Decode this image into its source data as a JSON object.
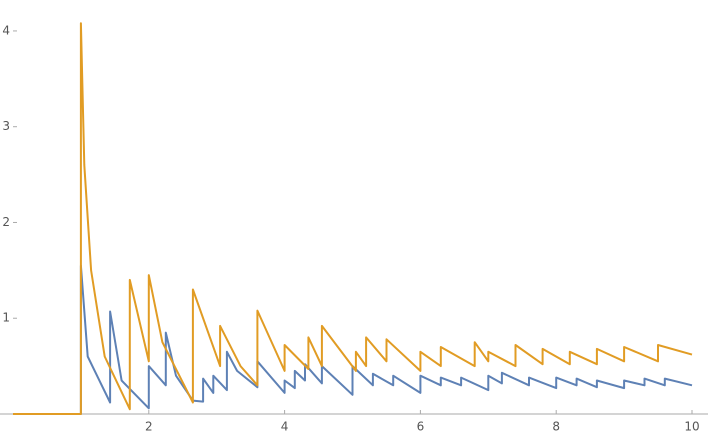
{
  "chart_data": {
    "type": "line",
    "xlim": [
      0,
      10
    ],
    "ylim": [
      0,
      4.25
    ],
    "xticks": [
      2,
      4,
      6,
      8,
      10
    ],
    "yticks": [
      1,
      2,
      3,
      4
    ],
    "series": [
      {
        "color": "#5e81b5",
        "x": [
          0,
          1,
          1,
          1.1,
          1.43,
          1.43,
          1.6,
          2.0,
          2.0,
          2.25,
          2.25,
          2.4,
          2.65,
          2.8,
          2.8,
          2.95,
          2.95,
          3.15,
          3.15,
          3.3,
          3.6,
          3.6,
          4.0,
          4.0,
          4.15,
          4.15,
          4.3,
          4.3,
          4.55,
          4.55,
          5.0,
          5.0,
          5.3,
          5.3,
          5.6,
          5.6,
          6.0,
          6.0,
          6.3,
          6.3,
          6.6,
          6.6,
          7.0,
          7.0,
          7.2,
          7.2,
          7.6,
          7.6,
          8.0,
          8.0,
          8.3,
          8.3,
          8.6,
          8.6,
          9.0,
          9.0,
          9.3,
          9.3,
          9.6,
          9.6,
          10.0
        ],
        "values": [
          0,
          0,
          1.55,
          0.6,
          0.12,
          1.07,
          0.35,
          0.06,
          0.5,
          0.3,
          0.85,
          0.4,
          0.14,
          0.13,
          0.37,
          0.22,
          0.4,
          0.25,
          0.65,
          0.45,
          0.28,
          0.55,
          0.22,
          0.35,
          0.27,
          0.45,
          0.35,
          0.52,
          0.32,
          0.5,
          0.2,
          0.5,
          0.3,
          0.42,
          0.3,
          0.4,
          0.22,
          0.4,
          0.3,
          0.38,
          0.3,
          0.38,
          0.25,
          0.4,
          0.32,
          0.43,
          0.3,
          0.38,
          0.27,
          0.38,
          0.3,
          0.37,
          0.28,
          0.35,
          0.27,
          0.35,
          0.3,
          0.37,
          0.3,
          0.37,
          0.3
        ]
      },
      {
        "color": "#e19c24",
        "x": [
          0,
          1,
          1,
          1.05,
          1.15,
          1.35,
          1.72,
          1.72,
          2.0,
          2.0,
          2.2,
          2.65,
          2.65,
          3.05,
          3.05,
          3.35,
          3.6,
          3.6,
          4.0,
          4.0,
          4.35,
          4.35,
          4.55,
          4.55,
          5.05,
          5.05,
          5.2,
          5.2,
          5.5,
          5.5,
          6.0,
          6.0,
          6.3,
          6.3,
          6.8,
          6.8,
          7.0,
          7.0,
          7.4,
          7.4,
          7.8,
          7.8,
          8.2,
          8.2,
          8.6,
          8.6,
          9.0,
          9.0,
          9.5,
          9.5,
          10.0
        ],
        "values": [
          0,
          0,
          4.08,
          2.6,
          1.5,
          0.6,
          0.05,
          1.4,
          0.55,
          1.45,
          0.75,
          0.12,
          1.3,
          0.5,
          0.92,
          0.5,
          0.3,
          1.08,
          0.45,
          0.72,
          0.47,
          0.8,
          0.5,
          0.92,
          0.45,
          0.65,
          0.5,
          0.8,
          0.55,
          0.78,
          0.45,
          0.65,
          0.5,
          0.7,
          0.5,
          0.75,
          0.55,
          0.65,
          0.5,
          0.72,
          0.52,
          0.68,
          0.52,
          0.65,
          0.52,
          0.68,
          0.55,
          0.7,
          0.55,
          0.72,
          0.62
        ]
      }
    ]
  }
}
